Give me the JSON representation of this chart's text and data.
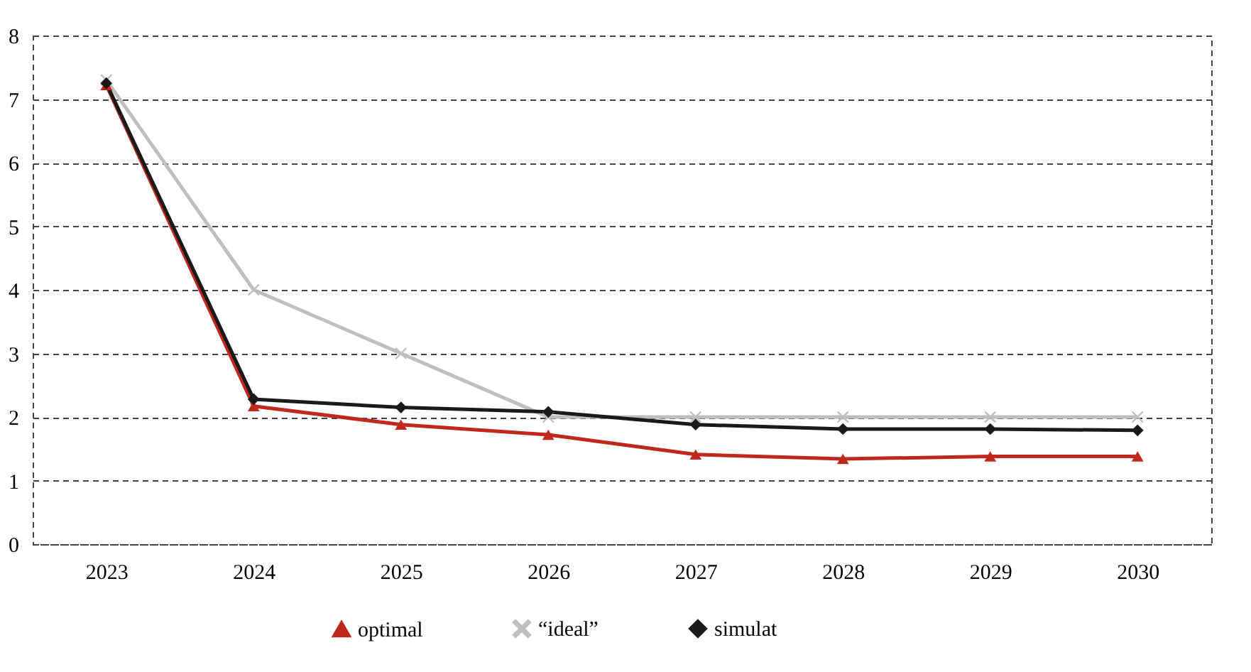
{
  "chart_data": {
    "type": "line",
    "categories": [
      "2023",
      "2024",
      "2025",
      "2026",
      "2027",
      "2028",
      "2029",
      "2030"
    ],
    "series": [
      {
        "name": "optimal",
        "color": "#c0281e",
        "marker": "triangle",
        "values": [
          7.22,
          2.17,
          1.88,
          1.72,
          1.41,
          1.34,
          1.38,
          1.38
        ]
      },
      {
        "name": "“ideal”",
        "color": "#bfbfbf",
        "marker": "cross",
        "values": [
          7.3,
          4,
          3,
          2,
          2,
          2,
          2,
          2
        ]
      },
      {
        "name": "simulat",
        "color": "#1a1a1a",
        "marker": "diamond",
        "values": [
          7.25,
          2.28,
          2.15,
          2.08,
          1.88,
          1.81,
          1.81,
          1.79
        ]
      }
    ],
    "ylim": [
      0,
      8
    ],
    "yticks": [
      0,
      1,
      2,
      3,
      4,
      5,
      6,
      7,
      8
    ],
    "grid": "y",
    "legend": "bottom",
    "line_style": "solid"
  }
}
